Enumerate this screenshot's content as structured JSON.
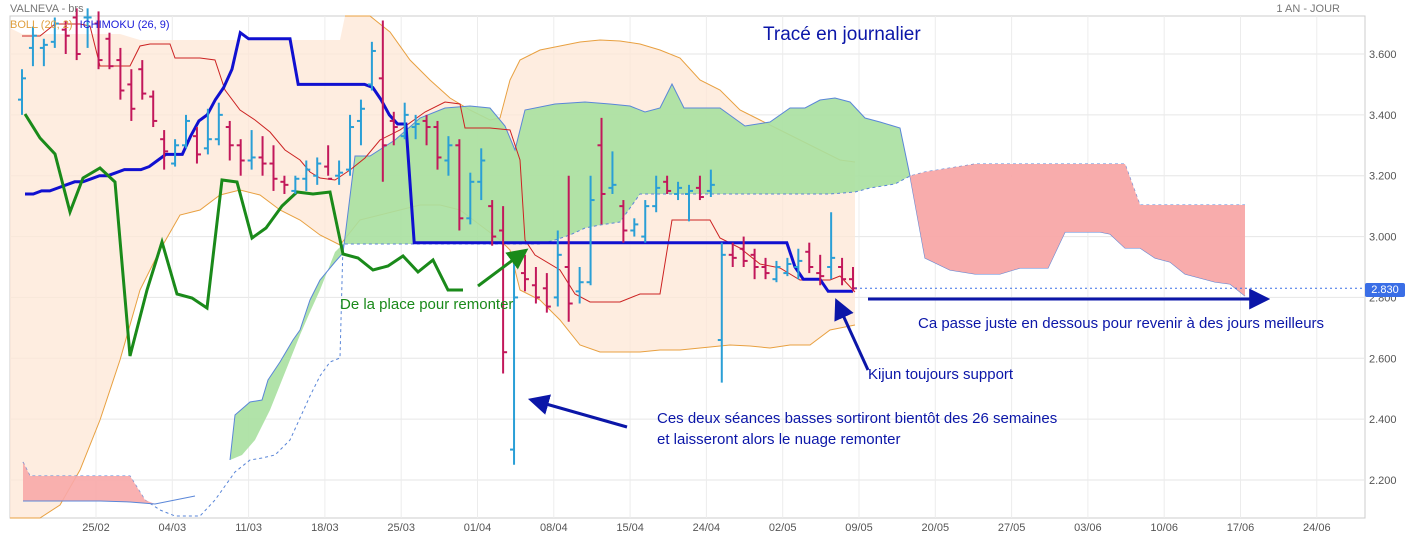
{
  "header": {
    "instrument": "VALNEVA - brs",
    "period": "1 AN - JOUR"
  },
  "legend": {
    "boll": "BOLL (20, 2)",
    "ichimoku": "ICHIMOKU (26, 9)"
  },
  "last_price_label": "2.830",
  "annotations": {
    "title": "Tracé en journalier",
    "room": "De la place pour remonter",
    "below": "Ca passe juste en dessous pour revenir à des jours meilleurs",
    "kijun": "Kijun toujours support",
    "sessions_line1": "Ces deux séances basses sortiront bientôt des 26 semaines",
    "sessions_line2": "et laisseront alors le nuage remonter"
  },
  "colors": {
    "up_bar": "#2a9fd6",
    "down_bar": "#c2185b",
    "kijun": "#1010d0",
    "chikou": "#1a8a1a",
    "tenkan": "#cc2222",
    "boll": "#e8a040",
    "cloud_bull": "#a8e0a0",
    "cloud_bear": "#f8a8a8",
    "boll_fill": "#fde7d6",
    "annotation_blue": "#0b16a8",
    "annotation_green": "#1a8a1a"
  },
  "chart_data": {
    "type": "ohlc",
    "y_ticks": [
      2.2,
      2.4,
      2.6,
      2.8,
      3.0,
      3.2,
      3.4,
      3.6
    ],
    "y_tick_labels": [
      "2.200",
      "2.400",
      "2.600",
      "2.800",
      "3.000",
      "3.200",
      "3.400",
      "3.600"
    ],
    "ylim": [
      2.1,
      3.74
    ],
    "x_tick_labels": [
      "25/02",
      "04/03",
      "11/03",
      "18/03",
      "25/03",
      "01/04",
      "08/04",
      "15/04",
      "24/04",
      "02/05",
      "09/05",
      "20/05",
      "27/05",
      "03/06",
      "10/06",
      "17/06",
      "24/06"
    ],
    "last_price": 2.83,
    "bars": [
      {
        "o": 3.45,
        "h": 3.55,
        "l": 3.4,
        "c": 3.52
      },
      {
        "o": 3.62,
        "h": 3.69,
        "l": 3.56,
        "c": 3.66
      },
      {
        "o": 3.62,
        "h": 3.65,
        "l": 3.56,
        "c": 3.63
      },
      {
        "o": 3.64,
        "h": 3.72,
        "l": 3.62,
        "c": 3.7
      },
      {
        "o": 3.68,
        "h": 3.71,
        "l": 3.6,
        "c": 3.66
      },
      {
        "o": 3.72,
        "h": 3.75,
        "l": 3.58,
        "c": 3.6
      },
      {
        "o": 3.72,
        "h": 3.75,
        "l": 3.62,
        "c": 3.72
      },
      {
        "o": 3.7,
        "h": 3.74,
        "l": 3.55,
        "c": 3.58
      },
      {
        "o": 3.65,
        "h": 3.67,
        "l": 3.55,
        "c": 3.56
      },
      {
        "o": 3.58,
        "h": 3.62,
        "l": 3.45,
        "c": 3.48
      },
      {
        "o": 3.5,
        "h": 3.55,
        "l": 3.38,
        "c": 3.42
      },
      {
        "o": 3.55,
        "h": 3.58,
        "l": 3.45,
        "c": 3.47
      },
      {
        "o": 3.46,
        "h": 3.48,
        "l": 3.36,
        "c": 3.38
      },
      {
        "o": 3.32,
        "h": 3.35,
        "l": 3.22,
        "c": 3.28
      },
      {
        "o": 3.24,
        "h": 3.32,
        "l": 3.23,
        "c": 3.3
      },
      {
        "o": 3.3,
        "h": 3.4,
        "l": 3.29,
        "c": 3.38
      },
      {
        "o": 3.33,
        "h": 3.36,
        "l": 3.24,
        "c": 3.27
      },
      {
        "o": 3.29,
        "h": 3.42,
        "l": 3.27,
        "c": 3.32
      },
      {
        "o": 3.32,
        "h": 3.44,
        "l": 3.3,
        "c": 3.4
      },
      {
        "o": 3.36,
        "h": 3.38,
        "l": 3.25,
        "c": 3.3
      },
      {
        "o": 3.3,
        "h": 3.32,
        "l": 3.2,
        "c": 3.25
      },
      {
        "o": 3.25,
        "h": 3.35,
        "l": 3.22,
        "c": 3.26
      },
      {
        "o": 3.26,
        "h": 3.33,
        "l": 3.2,
        "c": 3.24
      },
      {
        "o": 3.24,
        "h": 3.3,
        "l": 3.15,
        "c": 3.19
      },
      {
        "o": 3.18,
        "h": 3.2,
        "l": 3.14,
        "c": 3.17
      },
      {
        "o": 3.15,
        "h": 3.2,
        "l": 3.14,
        "c": 3.19
      },
      {
        "o": 3.19,
        "h": 3.25,
        "l": 3.15,
        "c": 3.22
      },
      {
        "o": 3.2,
        "h": 3.26,
        "l": 3.17,
        "c": 3.24
      },
      {
        "o": 3.23,
        "h": 3.3,
        "l": 3.2,
        "c": 3.19
      },
      {
        "o": 3.2,
        "h": 3.25,
        "l": 3.17,
        "c": 3.21
      },
      {
        "o": 3.22,
        "h": 3.4,
        "l": 3.2,
        "c": 3.36
      },
      {
        "o": 3.38,
        "h": 3.45,
        "l": 3.3,
        "c": 3.42
      },
      {
        "o": 3.5,
        "h": 3.64,
        "l": 3.48,
        "c": 3.61
      },
      {
        "o": 3.52,
        "h": 3.71,
        "l": 3.18,
        "c": 3.3
      },
      {
        "o": 3.38,
        "h": 3.41,
        "l": 3.3,
        "c": 3.36
      },
      {
        "o": 3.33,
        "h": 3.44,
        "l": 3.32,
        "c": 3.4
      },
      {
        "o": 3.36,
        "h": 3.4,
        "l": 3.32,
        "c": 3.37
      },
      {
        "o": 3.38,
        "h": 3.4,
        "l": 3.3,
        "c": 3.36
      },
      {
        "o": 3.36,
        "h": 3.38,
        "l": 3.22,
        "c": 3.26
      },
      {
        "o": 3.25,
        "h": 3.33,
        "l": 3.2,
        "c": 3.3
      },
      {
        "o": 3.3,
        "h": 3.32,
        "l": 3.02,
        "c": 3.06
      },
      {
        "o": 3.06,
        "h": 3.21,
        "l": 3.04,
        "c": 3.18
      },
      {
        "o": 3.18,
        "h": 3.29,
        "l": 3.12,
        "c": 3.25
      },
      {
        "o": 3.1,
        "h": 3.12,
        "l": 2.97,
        "c": 3.0
      },
      {
        "o": 3.02,
        "h": 3.1,
        "l": 2.55,
        "c": 2.62
      },
      {
        "o": 2.3,
        "h": 2.95,
        "l": 2.25,
        "c": 2.8
      },
      {
        "o": 2.88,
        "h": 2.94,
        "l": 2.82,
        "c": 2.86
      },
      {
        "o": 2.84,
        "h": 2.9,
        "l": 2.78,
        "c": 2.8
      },
      {
        "o": 2.83,
        "h": 2.88,
        "l": 2.75,
        "c": 2.77
      },
      {
        "o": 2.8,
        "h": 3.02,
        "l": 2.77,
        "c": 2.94
      },
      {
        "o": 2.9,
        "h": 3.2,
        "l": 2.72,
        "c": 2.78
      },
      {
        "o": 2.82,
        "h": 2.9,
        "l": 2.78,
        "c": 2.85
      },
      {
        "o": 2.85,
        "h": 3.2,
        "l": 2.84,
        "c": 3.12
      },
      {
        "o": 3.3,
        "h": 3.39,
        "l": 3.04,
        "c": 3.14
      },
      {
        "o": 3.16,
        "h": 3.28,
        "l": 3.14,
        "c": 3.17
      },
      {
        "o": 3.1,
        "h": 3.12,
        "l": 2.98,
        "c": 3.02
      },
      {
        "o": 3.02,
        "h": 3.06,
        "l": 3.0,
        "c": 3.04
      },
      {
        "o": 3.0,
        "h": 3.12,
        "l": 2.98,
        "c": 3.1
      },
      {
        "o": 3.1,
        "h": 3.2,
        "l": 3.08,
        "c": 3.16
      },
      {
        "o": 3.18,
        "h": 3.2,
        "l": 3.14,
        "c": 3.15
      },
      {
        "o": 3.14,
        "h": 3.18,
        "l": 3.12,
        "c": 3.16
      },
      {
        "o": 3.14,
        "h": 3.17,
        "l": 3.05,
        "c": 3.15
      },
      {
        "o": 3.16,
        "h": 3.2,
        "l": 3.12,
        "c": 3.13
      },
      {
        "o": 3.15,
        "h": 3.22,
        "l": 3.13,
        "c": 3.17
      },
      {
        "o": 2.66,
        "h": 2.98,
        "l": 2.52,
        "c": 2.94
      },
      {
        "o": 2.94,
        "h": 2.98,
        "l": 2.9,
        "c": 2.93
      },
      {
        "o": 2.96,
        "h": 3.0,
        "l": 2.9,
        "c": 2.92
      },
      {
        "o": 2.94,
        "h": 2.96,
        "l": 2.86,
        "c": 2.9
      },
      {
        "o": 2.9,
        "h": 2.93,
        "l": 2.86,
        "c": 2.88
      },
      {
        "o": 2.86,
        "h": 2.92,
        "l": 2.85,
        "c": 2.9
      },
      {
        "o": 2.88,
        "h": 2.93,
        "l": 2.87,
        "c": 2.91
      },
      {
        "o": 2.9,
        "h": 2.96,
        "l": 2.86,
        "c": 2.92
      },
      {
        "o": 2.95,
        "h": 2.98,
        "l": 2.88,
        "c": 2.9
      },
      {
        "o": 2.88,
        "h": 2.94,
        "l": 2.84,
        "c": 2.87
      },
      {
        "o": 2.9,
        "h": 3.08,
        "l": 2.86,
        "c": 2.93
      },
      {
        "o": 2.9,
        "h": 2.93,
        "l": 2.84,
        "c": 2.86
      },
      {
        "o": 2.86,
        "h": 2.9,
        "l": 2.82,
        "c": 2.83
      }
    ],
    "kijun": [
      3.14,
      3.14,
      3.15,
      3.15,
      3.16,
      3.17,
      3.18,
      3.18,
      3.19,
      3.2,
      3.2,
      3.21,
      3.22,
      3.22,
      3.22,
      3.23,
      3.25,
      3.27,
      3.27,
      3.27,
      3.33,
      3.38,
      3.4,
      3.45,
      3.49,
      3.55,
      3.67,
      3.65,
      3.65,
      3.65,
      3.65,
      3.65,
      3.65,
      3.5,
      3.5,
      3.5,
      3.5,
      3.5,
      3.5,
      3.5,
      3.5,
      3.5,
      3.49,
      3.45,
      3.4,
      3.37,
      3.37,
      2.98,
      2.98,
      2.98,
      2.98,
      2.98,
      2.98,
      2.98,
      2.98,
      2.98,
      2.98,
      2.98,
      2.98,
      2.98,
      2.98,
      2.98,
      2.98,
      2.98,
      2.98,
      2.98,
      2.98,
      2.98,
      2.98,
      2.98,
      2.98,
      2.98,
      2.98,
      2.98,
      2.98,
      2.98,
      2.98,
      2.98,
      2.98,
      2.98,
      2.98,
      2.98,
      2.98,
      2.98,
      2.98,
      2.98,
      2.98,
      2.98,
      2.98,
      2.98,
      2.98,
      2.98,
      2.98,
      2.9,
      2.86,
      2.86,
      2.86,
      2.82,
      2.82,
      2.82,
      2.82
    ]
  }
}
